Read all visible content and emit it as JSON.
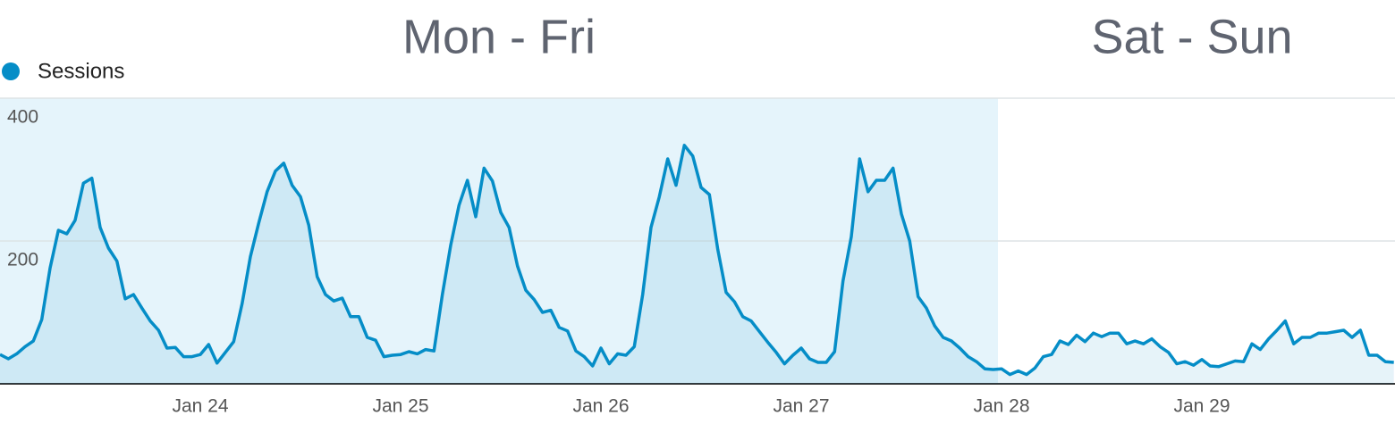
{
  "chart_data": {
    "type": "line",
    "annotations": [
      "Mon - Fri",
      "Sat - Sun"
    ],
    "categories": [
      null,
      null,
      null,
      null,
      null,
      null,
      null,
      null,
      null,
      null,
      null,
      null,
      null,
      null,
      null,
      null,
      null,
      null,
      null,
      null,
      null,
      null,
      null,
      null,
      "Jan 24",
      null,
      null,
      null,
      null,
      null,
      null,
      null,
      null,
      null,
      null,
      null,
      null,
      null,
      null,
      null,
      null,
      null,
      null,
      null,
      null,
      null,
      null,
      null,
      "Jan 25",
      null,
      null,
      null,
      null,
      null,
      null,
      null,
      null,
      null,
      null,
      null,
      null,
      null,
      null,
      null,
      null,
      null,
      null,
      null,
      null,
      null,
      null,
      null,
      "Jan 26",
      null,
      null,
      null,
      null,
      null,
      null,
      null,
      null,
      null,
      null,
      null,
      null,
      null,
      null,
      null,
      null,
      null,
      null,
      null,
      null,
      null,
      null,
      null,
      "Jan 27",
      null,
      null,
      null,
      null,
      null,
      null,
      null,
      null,
      null,
      null,
      null,
      null,
      null,
      null,
      null,
      null,
      null,
      null,
      null,
      null,
      null,
      null,
      null,
      "Jan 28",
      null,
      null,
      null,
      null,
      null,
      null,
      null,
      null,
      null,
      null,
      null,
      null,
      null,
      null,
      null,
      null,
      null,
      null,
      null,
      null,
      null,
      null,
      null,
      "Jan 29",
      null,
      null,
      null,
      null,
      null,
      null,
      null,
      null,
      null,
      null,
      null,
      null,
      null,
      null,
      null,
      null,
      null,
      null,
      null,
      null,
      null,
      null,
      null
    ],
    "series": [
      {
        "name": "Sessions",
        "color": "#058dc7",
        "values": [
          41,
          35,
          42,
          52,
          60,
          90,
          162,
          215,
          210,
          229,
          281,
          288,
          219,
          190,
          172,
          119,
          125,
          106,
          88,
          75,
          50,
          51,
          38,
          38,
          41,
          55,
          29,
          44,
          59,
          112,
          178,
          225,
          269,
          298,
          309,
          278,
          262,
          222,
          150,
          125,
          116,
          120,
          94,
          94,
          65,
          61,
          38,
          40,
          41,
          45,
          42,
          48,
          46,
          125,
          194,
          250,
          285,
          234,
          302,
          284,
          240,
          219,
          165,
          131,
          118,
          100,
          103,
          79,
          74,
          46,
          38,
          25,
          50,
          28,
          42,
          40,
          52,
          125,
          219,
          262,
          315,
          278,
          334,
          319,
          275,
          265,
          188,
          128,
          115,
          94,
          88,
          73,
          58,
          44,
          28,
          40,
          50,
          35,
          30,
          30,
          45,
          144,
          206,
          315,
          269,
          285,
          285,
          302,
          238,
          200,
          122,
          106,
          81,
          65,
          60,
          50,
          38,
          31,
          21,
          20,
          21,
          13,
          18,
          13,
          22,
          38,
          41,
          60,
          55,
          68,
          59,
          71,
          66,
          71,
          71,
          56,
          60,
          56,
          63,
          52,
          44,
          28,
          31,
          26,
          34,
          25,
          24,
          28,
          32,
          31,
          56,
          48,
          63,
          75,
          88,
          56,
          65,
          65,
          71,
          71,
          73,
          75,
          65,
          75,
          40,
          40,
          31,
          30
        ]
      }
    ],
    "ylim": [
      0,
      400
    ],
    "yticks": [
      200,
      400
    ],
    "grid": true
  }
}
